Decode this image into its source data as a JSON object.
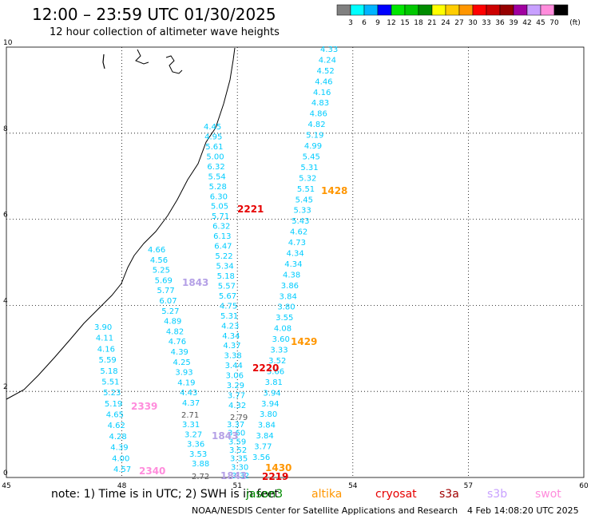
{
  "title": "12:00 – 23:59 UTC 01/30/2025",
  "subtitle": "12 hour collection of altimeter wave heights",
  "scale": {
    "unit": "(ft)",
    "colors": [
      "#808080",
      "#00ffff",
      "#00b4ff",
      "#0000ff",
      "#00e600",
      "#00c800",
      "#008c00",
      "#ffff00",
      "#ffcd00",
      "#ff9600",
      "#ff0000",
      "#cd0000",
      "#960000",
      "#a000a0",
      "#c8a0ff",
      "#ff8cdc",
      "#000000"
    ],
    "labels": [
      "3",
      "6",
      "9",
      "12",
      "15",
      "18",
      "21",
      "24",
      "27",
      "30",
      "33",
      "36",
      "39",
      "42",
      "45",
      "70"
    ]
  },
  "axes": {
    "x_ticks": [
      "45",
      "48",
      "51",
      "54",
      "57",
      "60"
    ],
    "y_ticks": [
      "0",
      "2",
      "4",
      "6",
      "8",
      "10"
    ],
    "xlim": [
      45,
      60
    ],
    "ylim": [
      0,
      10
    ]
  },
  "tracks": [
    {
      "color": "#00ccff",
      "values": [
        "3.90",
        "4.11",
        "4.16",
        "5.59",
        "5.18",
        "5.51",
        "5.23",
        "5.19",
        "4.65",
        "4.62",
        "4.28",
        "4.39",
        "4.00",
        "4.57"
      ]
    },
    {
      "color": "#00ccff",
      "values": [
        "4.66",
        "4.56",
        "5.25",
        "5.69",
        "5.77",
        "6.07",
        "5.27",
        "4.89",
        "4.82",
        "4.76",
        "4.39",
        "4.25",
        "3.93",
        "4.19",
        "4.43",
        "4.37"
      ]
    },
    {
      "color": "#00ccff",
      "values": [
        "3.31",
        "3.27",
        "3.36",
        "3.53",
        "3.88"
      ]
    },
    {
      "color": "#00ccff",
      "values": [
        "4.45",
        "4.95",
        "5.61",
        "5.00",
        "6.32",
        "5.54",
        "5.28",
        "6.30",
        "5.05",
        "5.71",
        "6.32",
        "6.13",
        "6.47",
        "5.22",
        "5.34",
        "5.18",
        "5.57",
        "5.67",
        "4.75",
        "5.31",
        "4.23",
        "4.34",
        "4.37",
        "3.38",
        "3.44",
        "3.06",
        "3.29",
        "3.77",
        "4.32"
      ]
    },
    {
      "color": "#00ccff",
      "values": [
        "3.37",
        "3.60",
        "3.59",
        "3.52",
        "3.35",
        "3.30",
        "3.32"
      ]
    },
    {
      "color": "#00ccff",
      "values": [
        "4.33",
        "4.24",
        "4.52",
        "4.46",
        "4.16",
        "4.83",
        "4.86",
        "4.82",
        "5.19",
        "4.99",
        "5.45",
        "5.31",
        "5.32",
        "5.51",
        "5.45",
        "5.33",
        "5.43",
        "4.62",
        "4.73",
        "4.34",
        "4.34",
        "4.38",
        "3.86",
        "3.84",
        "3.80",
        "3.55",
        "4.08",
        "3.60",
        "3.33",
        "3.52",
        "3.66",
        "3.81",
        "3.94",
        "3.94",
        "3.80",
        "3.84",
        "3.84",
        "3.77",
        "3.56"
      ]
    }
  ],
  "gray_values": [
    "2.71",
    "2.72",
    "2.79"
  ],
  "time_labels": [
    {
      "text": "2221",
      "color": "#e60000"
    },
    {
      "text": "1428",
      "color": "#ff9600"
    },
    {
      "text": "1843",
      "color": "#b4a0e6"
    },
    {
      "text": "1429",
      "color": "#ff9600"
    },
    {
      "text": "2220",
      "color": "#e60000"
    },
    {
      "text": "2339",
      "color": "#ff8cdc"
    },
    {
      "text": "1843",
      "color": "#b4a0e6"
    },
    {
      "text": "2340",
      "color": "#ff8cdc"
    },
    {
      "text": "1430",
      "color": "#ff9600"
    },
    {
      "text": "1843",
      "color": "#b4a0e6"
    },
    {
      "text": "2219",
      "color": "#e60000"
    }
  ],
  "notes": {
    "prefix": "note:  1) Time is in UTC; 2) SWH is in feet",
    "satellites": [
      {
        "name": "jason3",
        "color": "#008c00"
      },
      {
        "name": "altika",
        "color": "#ff9600"
      },
      {
        "name": "cryosat",
        "color": "#e60000"
      },
      {
        "name": "s3a",
        "color": "#a00000"
      },
      {
        "name": "s3b",
        "color": "#c8a0ff"
      },
      {
        "name": "swot",
        "color": "#ff8cdc"
      }
    ]
  },
  "credit": "NOAA/NESDIS Center for Satellite Applications and Research",
  "stamp": "4 Feb 14:08:20 UTC 2025"
}
